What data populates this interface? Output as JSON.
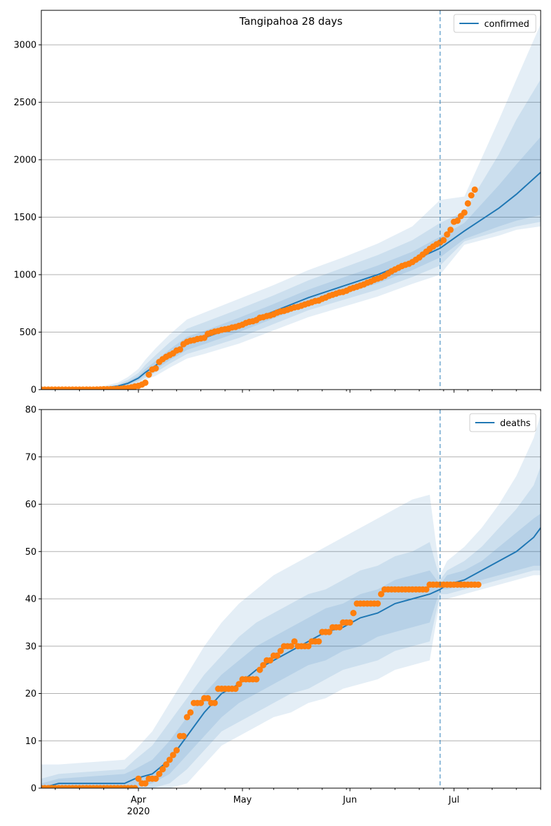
{
  "colors": {
    "model": "#1f77b4",
    "observed": "#ff7f0e",
    "band": "#1f77b4",
    "grid": "#b0b0b0",
    "cutoff": "#1f77b4"
  },
  "months": [
    {
      "label": "Apr",
      "sub": "2020",
      "day": 31
    },
    {
      "label": "May",
      "sub": "",
      "day": 61
    },
    {
      "label": "Jun",
      "sub": "",
      "day": 92
    },
    {
      "label": "Jul",
      "sub": "",
      "day": 122
    }
  ],
  "chart_data": [
    {
      "type": "line",
      "title": "Tangipahoa 28 days",
      "legend": [
        "confirmed"
      ],
      "legend_position": "top-right",
      "grid": true,
      "x_axis": "date, days since 2020-03-01",
      "xlim": [
        3,
        147
      ],
      "ylim": [
        0,
        3300
      ],
      "yticks": [
        0,
        500,
        1000,
        1500,
        2000,
        2500,
        3000
      ],
      "forecast_start_day": 118,
      "model_days": [
        3,
        15,
        20,
        25,
        28,
        31,
        33,
        36,
        40,
        45,
        50,
        60,
        70,
        80,
        90,
        100,
        110,
        118,
        125,
        135,
        140,
        147
      ],
      "model": [
        0,
        2,
        10,
        30,
        55,
        100,
        150,
        210,
        300,
        400,
        450,
        560,
        680,
        800,
        900,
        1000,
        1120,
        1230,
        1380,
        1580,
        1700,
        1890
      ],
      "band_inner": [
        [
          0,
          0
        ],
        [
          1,
          3
        ],
        [
          7,
          13
        ],
        [
          23,
          38
        ],
        [
          42,
          70
        ],
        [
          80,
          120
        ],
        [
          125,
          180
        ],
        [
          175,
          250
        ],
        [
          255,
          350
        ],
        [
          345,
          460
        ],
        [
          395,
          510
        ],
        [
          500,
          625
        ],
        [
          620,
          745
        ],
        [
          735,
          870
        ],
        [
          830,
          975
        ],
        [
          925,
          1080
        ],
        [
          1040,
          1200
        ],
        [
          1150,
          1330
        ],
        [
          1310,
          1450
        ],
        [
          1420,
          1780
        ],
        [
          1470,
          1960
        ],
        [
          1520,
          2200
        ]
      ],
      "band_mid": [
        [
          0,
          0
        ],
        [
          0,
          5
        ],
        [
          5,
          17
        ],
        [
          18,
          45
        ],
        [
          35,
          85
        ],
        [
          65,
          145
        ],
        [
          105,
          215
        ],
        [
          150,
          300
        ],
        [
          225,
          410
        ],
        [
          310,
          530
        ],
        [
          355,
          585
        ],
        [
          450,
          700
        ],
        [
          570,
          820
        ],
        [
          690,
          950
        ],
        [
          780,
          1060
        ],
        [
          870,
          1170
        ],
        [
          980,
          1300
        ],
        [
          1080,
          1450
        ],
        [
          1290,
          1550
        ],
        [
          1380,
          2050
        ],
        [
          1420,
          2350
        ],
        [
          1460,
          2700
        ]
      ],
      "band_outer": [
        [
          0,
          0
        ],
        [
          0,
          8
        ],
        [
          3,
          25
        ],
        [
          12,
          60
        ],
        [
          25,
          110
        ],
        [
          50,
          180
        ],
        [
          85,
          260
        ],
        [
          120,
          360
        ],
        [
          190,
          480
        ],
        [
          270,
          610
        ],
        [
          310,
          670
        ],
        [
          400,
          790
        ],
        [
          515,
          910
        ],
        [
          630,
          1040
        ],
        [
          720,
          1150
        ],
        [
          810,
          1270
        ],
        [
          920,
          1420
        ],
        [
          1000,
          1650
        ],
        [
          1260,
          1680
        ],
        [
          1340,
          2350
        ],
        [
          1390,
          2700
        ],
        [
          1420,
          3180
        ]
      ],
      "observed_days": [
        3,
        4,
        5,
        6,
        7,
        8,
        9,
        10,
        11,
        12,
        13,
        14,
        15,
        16,
        17,
        18,
        19,
        20,
        21,
        22,
        23,
        24,
        25,
        26,
        27,
        28,
        29,
        30,
        31,
        32,
        33,
        34,
        35,
        36,
        37,
        38,
        39,
        40,
        41,
        42,
        43,
        44,
        45,
        46,
        47,
        48,
        49,
        50,
        51,
        52,
        53,
        54,
        55,
        56,
        57,
        58,
        59,
        60,
        61,
        62,
        63,
        64,
        65,
        66,
        67,
        68,
        69,
        70,
        71,
        72,
        73,
        74,
        75,
        76,
        77,
        78,
        79,
        80,
        81,
        82,
        83,
        84,
        85,
        86,
        87,
        88,
        89,
        90,
        91,
        92,
        93,
        94,
        95,
        96,
        97,
        98,
        99,
        100,
        101,
        102,
        103,
        104,
        105,
        106,
        107,
        108,
        109,
        110,
        111,
        112,
        113,
        114,
        115,
        116,
        117,
        118,
        119,
        120,
        121,
        122,
        123,
        124,
        125,
        126,
        127,
        128,
        129
      ],
      "observed": [
        0,
        0,
        0,
        0,
        0,
        0,
        0,
        0,
        0,
        0,
        0,
        0,
        0,
        0,
        0,
        0,
        1,
        2,
        3,
        3,
        4,
        4,
        6,
        8,
        12,
        14,
        20,
        28,
        33,
        44,
        60,
        130,
        175,
        185,
        240,
        265,
        285,
        300,
        315,
        340,
        350,
        395,
        415,
        425,
        430,
        440,
        445,
        450,
        485,
        495,
        505,
        510,
        520,
        525,
        530,
        540,
        545,
        555,
        565,
        580,
        590,
        595,
        605,
        625,
        630,
        640,
        645,
        655,
        670,
        680,
        685,
        695,
        705,
        715,
        720,
        730,
        740,
        750,
        760,
        770,
        775,
        790,
        800,
        815,
        825,
        835,
        845,
        850,
        860,
        875,
        885,
        895,
        905,
        915,
        930,
        940,
        955,
        965,
        975,
        990,
        1010,
        1030,
        1045,
        1060,
        1075,
        1085,
        1095,
        1110,
        1130,
        1150,
        1175,
        1200,
        1225,
        1245,
        1265,
        1280,
        1300,
        1350,
        1390,
        1460,
        1470,
        1510,
        1540,
        1620,
        1690,
        1740
      ]
    },
    {
      "type": "line",
      "title": "",
      "legend": [
        "deaths"
      ],
      "legend_position": "top-right",
      "grid": true,
      "x_axis": "date, days since 2020-03-01",
      "xlim": [
        3,
        147
      ],
      "ylim": [
        0,
        80
      ],
      "yticks": [
        0,
        10,
        20,
        30,
        40,
        50,
        60,
        70,
        80
      ],
      "xtick_labels": [
        "Apr\n2020",
        "May",
        "Jun",
        "Jul"
      ],
      "forecast_start_day": 118,
      "model_days": [
        3,
        8,
        27,
        30,
        35,
        40,
        45,
        50,
        55,
        60,
        65,
        70,
        75,
        80,
        85,
        90,
        95,
        100,
        105,
        110,
        115,
        118,
        120,
        125,
        130,
        135,
        140,
        145,
        147
      ],
      "model": [
        0,
        1,
        1,
        2,
        3,
        6,
        11,
        16,
        20,
        22,
        25,
        27,
        29,
        31,
        33,
        34,
        36,
        37,
        39,
        40,
        41,
        42,
        43,
        44,
        46,
        48,
        50,
        53,
        55
      ],
      "band_inner": [
        [
          0,
          1
        ],
        [
          0,
          2
        ],
        [
          0,
          3
        ],
        [
          0,
          4
        ],
        [
          1,
          6
        ],
        [
          3,
          10
        ],
        [
          7,
          15
        ],
        [
          11,
          20
        ],
        [
          15,
          24
        ],
        [
          18,
          27
        ],
        [
          20,
          30
        ],
        [
          22,
          32
        ],
        [
          24,
          34
        ],
        [
          26,
          36
        ],
        [
          27,
          38
        ],
        [
          29,
          39
        ],
        [
          30,
          41
        ],
        [
          32,
          42
        ],
        [
          33,
          44
        ],
        [
          34,
          45
        ],
        [
          35,
          46
        ],
        [
          42,
          43
        ],
        [
          42,
          45
        ],
        [
          43,
          46
        ],
        [
          44,
          48
        ],
        [
          45,
          51
        ],
        [
          46,
          54
        ],
        [
          47,
          57
        ],
        [
          47,
          58
        ]
      ],
      "band_mid": [
        [
          0,
          2
        ],
        [
          0,
          3
        ],
        [
          0,
          4
        ],
        [
          0,
          6
        ],
        [
          0,
          9
        ],
        [
          1,
          14
        ],
        [
          4,
          19
        ],
        [
          8,
          24
        ],
        [
          12,
          28
        ],
        [
          14,
          32
        ],
        [
          16,
          35
        ],
        [
          18,
          37
        ],
        [
          20,
          39
        ],
        [
          21,
          41
        ],
        [
          23,
          42
        ],
        [
          25,
          44
        ],
        [
          26,
          46
        ],
        [
          27,
          47
        ],
        [
          29,
          49
        ],
        [
          30,
          50
        ],
        [
          31,
          52
        ],
        [
          41,
          44
        ],
        [
          41,
          46
        ],
        [
          42,
          48
        ],
        [
          43,
          51
        ],
        [
          44,
          55
        ],
        [
          45,
          59
        ],
        [
          46,
          64
        ],
        [
          46,
          68
        ]
      ],
      "band_outer": [
        [
          0,
          5
        ],
        [
          0,
          5
        ],
        [
          0,
          6
        ],
        [
          0,
          8
        ],
        [
          0,
          12
        ],
        [
          0,
          18
        ],
        [
          1,
          24
        ],
        [
          5,
          30
        ],
        [
          9,
          35
        ],
        [
          11,
          39
        ],
        [
          13,
          42
        ],
        [
          15,
          45
        ],
        [
          16,
          47
        ],
        [
          18,
          49
        ],
        [
          19,
          51
        ],
        [
          21,
          53
        ],
        [
          22,
          55
        ],
        [
          23,
          57
        ],
        [
          25,
          59
        ],
        [
          26,
          61
        ],
        [
          27,
          62
        ],
        [
          40,
          45
        ],
        [
          40,
          48
        ],
        [
          41,
          51
        ],
        [
          42,
          55
        ],
        [
          43,
          60
        ],
        [
          44,
          66
        ],
        [
          45,
          74
        ],
        [
          45,
          79
        ]
      ],
      "observed_days": [
        3,
        4,
        5,
        6,
        7,
        8,
        9,
        10,
        11,
        12,
        13,
        14,
        15,
        16,
        17,
        18,
        19,
        20,
        21,
        22,
        23,
        24,
        25,
        26,
        27,
        28,
        29,
        30,
        31,
        32,
        33,
        34,
        35,
        36,
        37,
        38,
        39,
        40,
        41,
        42,
        43,
        44,
        45,
        46,
        47,
        48,
        49,
        50,
        51,
        52,
        53,
        54,
        55,
        56,
        57,
        58,
        59,
        60,
        61,
        62,
        63,
        64,
        65,
        66,
        67,
        68,
        69,
        70,
        71,
        72,
        73,
        74,
        75,
        76,
        77,
        78,
        79,
        80,
        81,
        82,
        83,
        84,
        85,
        86,
        87,
        88,
        89,
        90,
        91,
        92,
        93,
        94,
        95,
        96,
        97,
        98,
        99,
        100,
        101,
        102,
        103,
        104,
        105,
        106,
        107,
        108,
        109,
        110,
        111,
        112,
        113,
        114,
        115,
        116,
        117,
        118,
        119,
        120,
        121,
        122,
        123,
        124,
        125,
        126,
        127,
        128,
        129
      ],
      "observed": [
        0,
        0,
        0,
        0,
        0,
        0,
        0,
        0,
        0,
        0,
        0,
        0,
        0,
        0,
        0,
        0,
        0,
        0,
        0,
        0,
        0,
        0,
        0,
        0,
        0,
        0,
        0,
        0,
        2,
        1,
        1,
        2,
        2,
        2,
        3,
        4,
        5,
        6,
        7,
        8,
        11,
        11,
        15,
        16,
        18,
        18,
        18,
        19,
        19,
        18,
        18,
        21,
        21,
        21,
        21,
        21,
        21,
        22,
        23,
        23,
        23,
        23,
        23,
        25,
        26,
        27,
        27,
        28,
        28,
        29,
        30,
        30,
        30,
        31,
        30,
        30,
        30,
        30,
        31,
        31,
        31,
        33,
        33,
        33,
        34,
        34,
        34,
        35,
        35,
        35,
        37,
        39,
        39,
        39,
        39,
        39,
        39,
        39,
        41,
        42,
        42,
        42,
        42,
        42,
        42,
        42,
        42,
        42,
        42,
        42,
        42,
        42,
        43,
        43,
        43,
        43,
        43,
        43,
        43,
        43,
        43,
        43,
        43,
        43,
        43,
        43,
        43
      ]
    }
  ]
}
